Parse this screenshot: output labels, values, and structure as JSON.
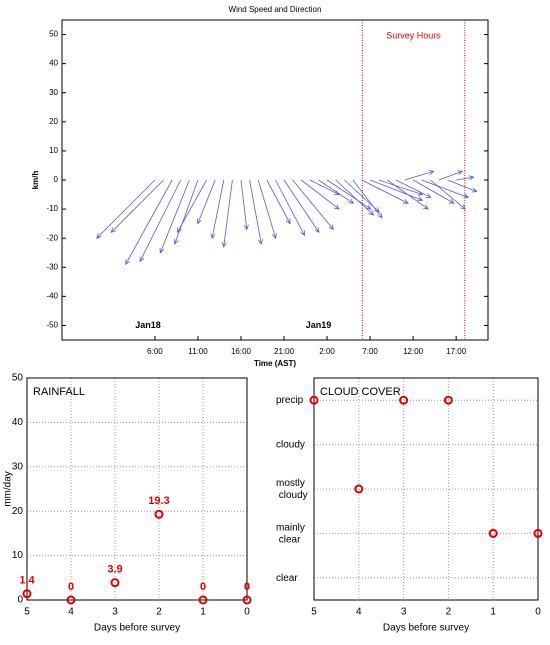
{
  "chart_data": [
    {
      "type": "quiver",
      "title": "Wind Speed and Direction",
      "x_label": "Time (AST)",
      "y_label": "km/h",
      "color": "#5a5ad0",
      "x": [
        6,
        7,
        8,
        9,
        10,
        11,
        12,
        13,
        14,
        15,
        16,
        17,
        18,
        19,
        20,
        21,
        22,
        23,
        24,
        25,
        26,
        27,
        28,
        29,
        30,
        31,
        32,
        33,
        34,
        35,
        36,
        37,
        38,
        39,
        40,
        41
      ],
      "u": [
        -20,
        -18,
        -16,
        -14,
        -10,
        -8,
        -10,
        -6,
        -4,
        -3,
        2,
        4,
        6,
        8,
        10,
        12,
        14,
        13,
        10,
        12,
        15,
        13,
        12,
        10,
        16,
        18,
        15,
        14,
        12,
        10,
        14,
        16,
        12,
        8,
        10,
        6
      ],
      "v": [
        -20,
        -18,
        -29,
        -28,
        -25,
        -22,
        -18,
        -15,
        -20,
        -23,
        -17,
        -22,
        -20,
        -15,
        -19,
        -18,
        -17,
        -10,
        -5,
        -8,
        -10,
        -12,
        -11,
        -13,
        -8,
        -7,
        -5,
        -10,
        -6,
        3,
        -8,
        -6,
        -10,
        3,
        -4,
        1
      ],
      "xlim": [
        -4.8,
        44.7
      ],
      "ylim": [
        -55,
        55
      ],
      "xticks": [
        {
          "value": 6,
          "label": "6:00"
        },
        {
          "value": 11,
          "label": "11:00"
        },
        {
          "value": 16,
          "label": "16:00"
        },
        {
          "value": 21,
          "label": "21:00"
        },
        {
          "value": 26,
          "label": "2:00"
        },
        {
          "value": 31,
          "label": "7:00"
        },
        {
          "value": 36,
          "label": "12:00"
        },
        {
          "value": 41,
          "label": "17:00"
        }
      ],
      "yticks": [
        -50,
        -40,
        -30,
        -20,
        -10,
        0,
        10,
        20,
        30,
        40,
        50
      ],
      "grid": false,
      "annotations": [
        {
          "text": "Jan18",
          "x": 5.2,
          "y": -50
        },
        {
          "text": "Jan19",
          "x": 25,
          "y": -50
        }
      ],
      "vlines": {
        "values": [
          30.1,
          42
        ],
        "color": "#e00000",
        "label": "Survey Hours"
      }
    },
    {
      "type": "scatter",
      "title": "RAINFALL",
      "x_label": "Days before survey",
      "y_label": "mm/day",
      "color": "#e00000",
      "x": [
        5,
        4,
        3,
        2,
        1,
        0
      ],
      "values": [
        1.4,
        0,
        3.9,
        19.3,
        0,
        0
      ],
      "show_value_labels": true,
      "xlim": [
        5,
        0
      ],
      "ylim": [
        0,
        50
      ],
      "xticks": [
        5,
        4,
        3,
        2,
        1,
        0
      ],
      "yticks": [
        0,
        10,
        20,
        30,
        40,
        50
      ],
      "grid": true
    },
    {
      "type": "scatter",
      "title": "CLOUD COVER",
      "x_label": "Days before survey",
      "color": "#e00000",
      "x": [
        5,
        4,
        3,
        2,
        1,
        0
      ],
      "values": [
        5,
        3,
        5,
        5,
        2,
        2
      ],
      "show_value_labels": false,
      "xlim": [
        5,
        0
      ],
      "ylim": [
        0.5,
        5.5
      ],
      "xticks": [
        5,
        4,
        3,
        2,
        1,
        0
      ],
      "yticks": [
        {
          "value": 1,
          "label": "clear"
        },
        {
          "value": 2,
          "label": "mainly clear"
        },
        {
          "value": 3,
          "label": "mostly cloudy"
        },
        {
          "value": 4,
          "label": "cloudy"
        },
        {
          "value": 5,
          "label": "precip"
        }
      ],
      "grid": true
    }
  ]
}
